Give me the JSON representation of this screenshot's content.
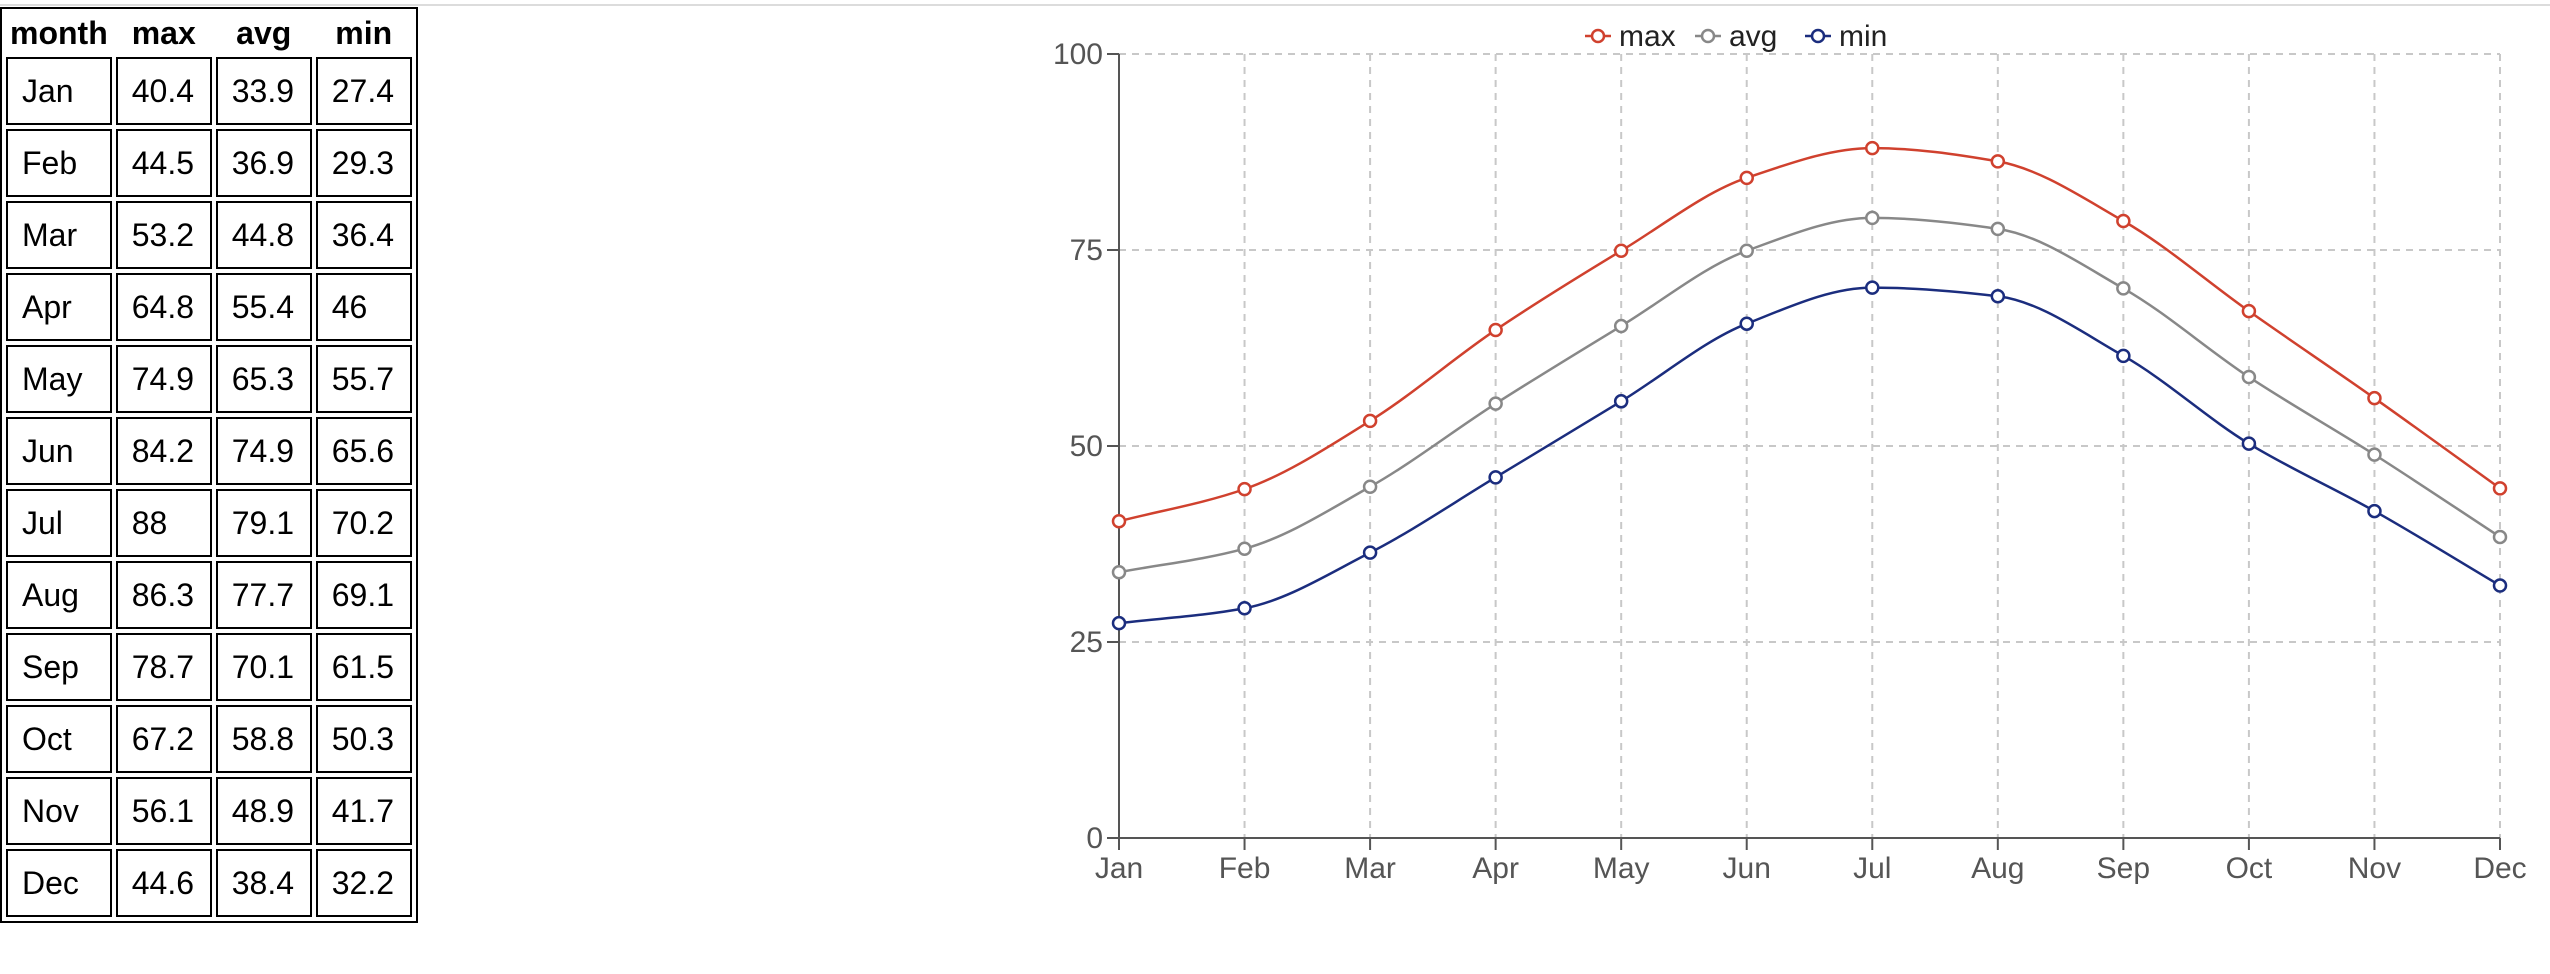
{
  "table": {
    "headers": [
      "month",
      "max",
      "avg",
      "min"
    ],
    "rows": [
      [
        "Jan",
        "40.4",
        "33.9",
        "27.4"
      ],
      [
        "Feb",
        "44.5",
        "36.9",
        "29.3"
      ],
      [
        "Mar",
        "53.2",
        "44.8",
        "36.4"
      ],
      [
        "Apr",
        "64.8",
        "55.4",
        "46"
      ],
      [
        "May",
        "74.9",
        "65.3",
        "55.7"
      ],
      [
        "Jun",
        "84.2",
        "74.9",
        "65.6"
      ],
      [
        "Jul",
        "88",
        "79.1",
        "70.2"
      ],
      [
        "Aug",
        "86.3",
        "77.7",
        "69.1"
      ],
      [
        "Sep",
        "78.7",
        "70.1",
        "61.5"
      ],
      [
        "Oct",
        "67.2",
        "58.8",
        "50.3"
      ],
      [
        "Nov",
        "56.1",
        "48.9",
        "41.7"
      ],
      [
        "Dec",
        "44.6",
        "38.4",
        "32.2"
      ]
    ]
  },
  "chart_data": {
    "type": "line",
    "title": "",
    "xlabel": "",
    "ylabel": "",
    "categories": [
      "Jan",
      "Feb",
      "Mar",
      "Apr",
      "May",
      "Jun",
      "Jul",
      "Aug",
      "Sep",
      "Oct",
      "Nov",
      "Dec"
    ],
    "ylim": [
      0,
      100
    ],
    "yticks": [
      0,
      25,
      50,
      75,
      100
    ],
    "grid": true,
    "legend_position": "top-center",
    "series": [
      {
        "name": "max",
        "color": "#d0412e",
        "values": [
          40.4,
          44.5,
          53.2,
          64.8,
          74.9,
          84.2,
          88,
          86.3,
          78.7,
          67.2,
          56.1,
          44.6
        ]
      },
      {
        "name": "avg",
        "color": "#888888",
        "values": [
          33.9,
          36.9,
          44.8,
          55.4,
          65.3,
          74.9,
          79.1,
          77.7,
          70.1,
          58.8,
          48.9,
          38.4
        ]
      },
      {
        "name": "min",
        "color": "#1b2d7e",
        "values": [
          27.4,
          29.3,
          36.4,
          46,
          55.7,
          65.6,
          70.2,
          69.1,
          61.5,
          50.3,
          41.7,
          32.2
        ]
      }
    ]
  }
}
